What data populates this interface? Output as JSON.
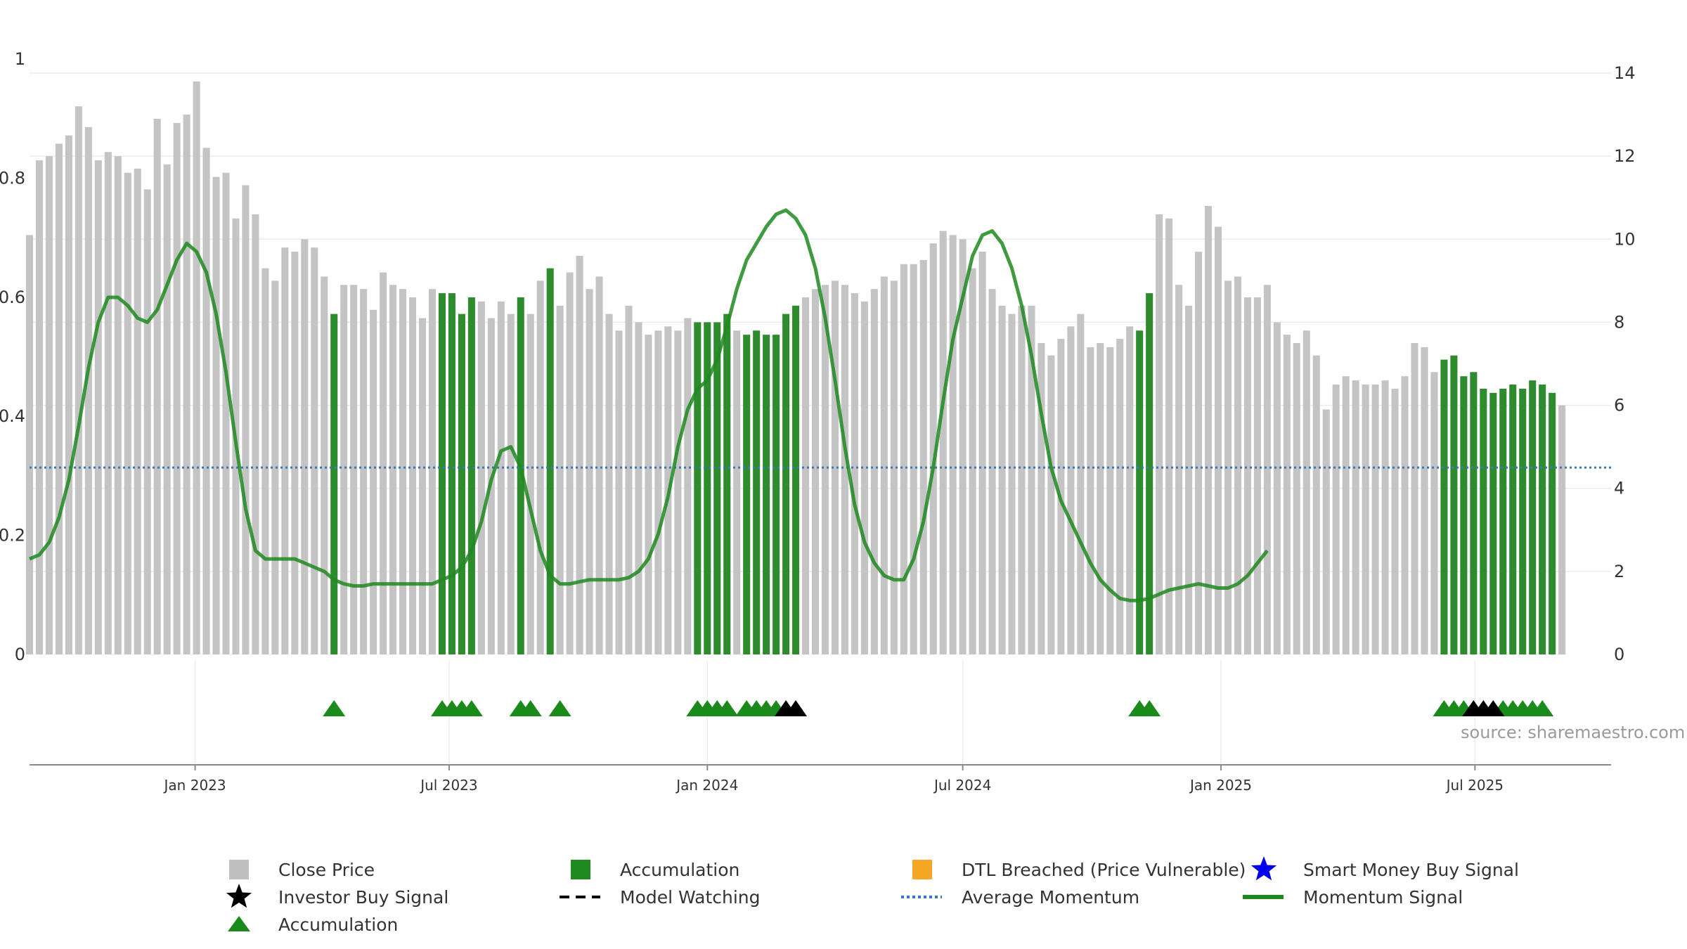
{
  "chart_data": {
    "type": "bar",
    "source_text": "source: sharemaestro.com",
    "y_left": {
      "range": [
        0,
        1
      ],
      "ticks": [
        "0",
        "0.2",
        "0.4",
        "0.6",
        "0.8",
        "1"
      ],
      "tick_values": [
        0,
        0.2,
        0.4,
        0.6,
        0.8,
        1.0
      ]
    },
    "y_right": {
      "range": [
        0,
        14
      ],
      "ticks": [
        "0",
        "2",
        "4",
        "6",
        "8",
        "10",
        "12",
        "14"
      ],
      "tick_values": [
        0,
        2,
        4,
        6,
        8,
        10,
        12,
        14
      ]
    },
    "x_axis": {
      "start": "2022-09-05",
      "end": "2025-10-06",
      "ticks": [
        {
          "date": "2023-01-01",
          "label": "Jan 2023"
        },
        {
          "date": "2023-07-01",
          "label": "Jul 2023"
        },
        {
          "date": "2024-01-01",
          "label": "Jan 2024"
        },
        {
          "date": "2024-07-01",
          "label": "Jul 2024"
        },
        {
          "date": "2025-01-01",
          "label": "Jan 2025"
        },
        {
          "date": "2025-07-01",
          "label": "Jul 2025"
        }
      ]
    },
    "bars": {
      "start_date": "2022-09-05",
      "interval_days": 7,
      "close": [
        10.1,
        11.9,
        12.0,
        12.3,
        12.5,
        13.2,
        12.7,
        11.9,
        12.1,
        12.0,
        11.6,
        11.7,
        11.2,
        12.9,
        11.8,
        12.8,
        13.0,
        13.8,
        12.2,
        11.5,
        11.6,
        10.5,
        11.3,
        10.6,
        9.3,
        9.0,
        9.8,
        9.7,
        10.0,
        9.8,
        9.1,
        8.2,
        8.9,
        8.9,
        8.8,
        8.3,
        9.2,
        8.9,
        8.8,
        8.6,
        8.1,
        8.8,
        8.7,
        8.7,
        8.2,
        8.6,
        8.5,
        8.1,
        8.5,
        8.2,
        8.6,
        8.2,
        9.0,
        9.3,
        8.4,
        9.2,
        9.6,
        8.8,
        9.1,
        8.2,
        7.8,
        8.4,
        8.0,
        7.7,
        7.8,
        7.9,
        7.8,
        8.1,
        8.0,
        8.0,
        8.0,
        8.2,
        7.8,
        7.7,
        7.8,
        7.7,
        7.7,
        8.2,
        8.4,
        8.6,
        8.8,
        8.9,
        9.0,
        8.9,
        8.7,
        8.5,
        8.8,
        9.1,
        9.0,
        9.4,
        9.4,
        9.5,
        9.9,
        10.2,
        10.1,
        10.0,
        9.3,
        9.7,
        8.8,
        8.4,
        8.2,
        8.4,
        8.4,
        7.5,
        7.2,
        7.6,
        7.9,
        8.2,
        7.4,
        7.5,
        7.4,
        7.6,
        7.9,
        7.8,
        8.7,
        10.6,
        10.5,
        8.9,
        8.4,
        9.7,
        10.8,
        10.3,
        9.0,
        9.1,
        8.6,
        8.6,
        8.9,
        8.0,
        7.7,
        7.5,
        7.8,
        7.2,
        5.9,
        6.5,
        6.7,
        6.6,
        6.5,
        6.5,
        6.6,
        6.4,
        6.7,
        7.5,
        7.4,
        6.8,
        7.1,
        7.2,
        6.7,
        6.8,
        6.4,
        6.3,
        6.4,
        6.5,
        6.4,
        6.6,
        6.5,
        6.3,
        6.0
      ],
      "accumulation_index": [
        31,
        42,
        43,
        44,
        45,
        50,
        53,
        68,
        69,
        70,
        71,
        73,
        74,
        75,
        76,
        77,
        78,
        113,
        114,
        144,
        145,
        146,
        147,
        148,
        149,
        150,
        151,
        152,
        153,
        154,
        155
      ]
    },
    "triangles": {
      "green_index": [
        31,
        42,
        43,
        44,
        45,
        50,
        51,
        54,
        68,
        69,
        70,
        71,
        73,
        74,
        75,
        76,
        113,
        114,
        144,
        145,
        146,
        150,
        151,
        152,
        153,
        154
      ],
      "black_index": [
        77,
        78,
        147,
        148,
        149
      ]
    },
    "momentum": {
      "start_date": "2022-09-05",
      "interval_days": 7,
      "values": [
        2.3,
        2.4,
        2.7,
        3.3,
        4.2,
        5.5,
        6.9,
        8.0,
        8.6,
        8.6,
        8.4,
        8.1,
        8.0,
        8.3,
        8.9,
        9.5,
        9.9,
        9.7,
        9.2,
        8.2,
        6.8,
        5.1,
        3.5,
        2.5,
        2.3,
        2.3,
        2.3,
        2.3,
        2.2,
        2.1,
        2.0,
        1.8,
        1.7,
        1.65,
        1.65,
        1.7,
        1.7,
        1.7,
        1.7,
        1.7,
        1.7,
        1.7,
        1.8,
        1.9,
        2.1,
        2.5,
        3.2,
        4.2,
        4.9,
        5.0,
        4.5,
        3.5,
        2.5,
        1.9,
        1.7,
        1.7,
        1.75,
        1.8,
        1.8,
        1.8,
        1.8,
        1.85,
        2.0,
        2.3,
        2.9,
        3.8,
        5.0,
        5.9,
        6.4,
        6.6,
        7.1,
        7.9,
        8.8,
        9.5,
        9.9,
        10.3,
        10.6,
        10.7,
        10.5,
        10.1,
        9.3,
        8.1,
        6.6,
        5.0,
        3.6,
        2.7,
        2.2,
        1.9,
        1.8,
        1.8,
        2.3,
        3.2,
        4.5,
        6.1,
        7.6,
        8.6,
        9.6,
        10.1,
        10.2,
        9.9,
        9.3,
        8.4,
        7.2,
        5.8,
        4.5,
        3.7,
        3.2,
        2.7,
        2.2,
        1.8,
        1.55,
        1.35,
        1.3,
        1.3,
        1.35,
        1.45,
        1.55,
        1.6,
        1.65,
        1.7,
        1.65,
        1.6,
        1.6,
        1.7,
        1.9,
        2.2,
        2.5
      ]
    },
    "average_momentum": 4.5,
    "colors": {
      "close": "#c4c4c4",
      "accumulation": "#2e8b2e",
      "momentum": "#1e8a1e",
      "average": "#3c78b4",
      "triangle_green": "#1a8a1a",
      "triangle_black": "#000000",
      "dtl": "#f5a623",
      "star_blue": "#0000ee"
    },
    "legend": [
      {
        "label": "Close Price",
        "marker": "grey-square"
      },
      {
        "label": "Accumulation",
        "marker": "green-square"
      },
      {
        "label": "DTL Breached (Price Vulnerable)",
        "marker": "orange-square"
      },
      {
        "label": "Smart Money Buy Signal",
        "marker": "blue-star"
      },
      {
        "label": "Investor Buy Signal",
        "marker": "black-star"
      },
      {
        "label": "Model Watching",
        "marker": "black-dash"
      },
      {
        "label": "Average Momentum",
        "marker": "blue-dotted"
      },
      {
        "label": "Momentum Signal",
        "marker": "green-line"
      },
      {
        "label": "Accumulation",
        "marker": "green-triangle"
      }
    ]
  }
}
